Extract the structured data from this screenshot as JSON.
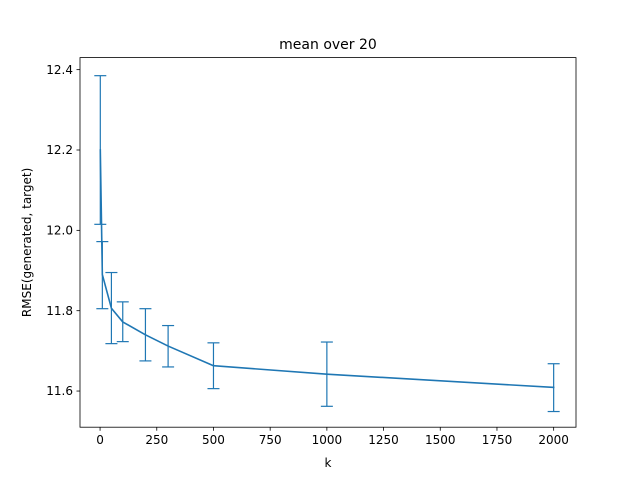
{
  "chart_data": {
    "type": "line",
    "title": "mean over 20",
    "xlabel": "k",
    "ylabel": "RMSE(generated, target)",
    "xlim": [
      -88.5,
      2098.5
    ],
    "ylim": [
      11.51,
      12.43
    ],
    "xticks": [
      0,
      250,
      500,
      750,
      1000,
      1250,
      1500,
      1750,
      2000
    ],
    "xtick_labels": [
      "0",
      "250",
      "500",
      "750",
      "1000",
      "1250",
      "1500",
      "1750",
      "2000"
    ],
    "yticks": [
      11.6,
      11.8,
      12.0,
      12.2,
      12.4
    ],
    "ytick_labels": [
      "11.6",
      "11.8",
      "12.0",
      "12.2",
      "12.4"
    ],
    "grid": false,
    "color": "#1f77b4",
    "series": [
      {
        "x": [
          1,
          10,
          50,
          100,
          200,
          300,
          500,
          1000,
          2000
        ],
        "y": [
          12.2,
          11.89,
          11.806,
          11.772,
          11.74,
          11.712,
          11.663,
          11.642,
          11.609
        ],
        "yerr_lower": [
          12.015,
          11.805,
          11.718,
          11.723,
          11.675,
          11.66,
          11.606,
          11.562,
          11.549
        ],
        "yerr_upper": [
          12.385,
          11.972,
          11.895,
          11.822,
          11.805,
          11.763,
          11.72,
          11.722,
          11.668
        ]
      }
    ]
  }
}
